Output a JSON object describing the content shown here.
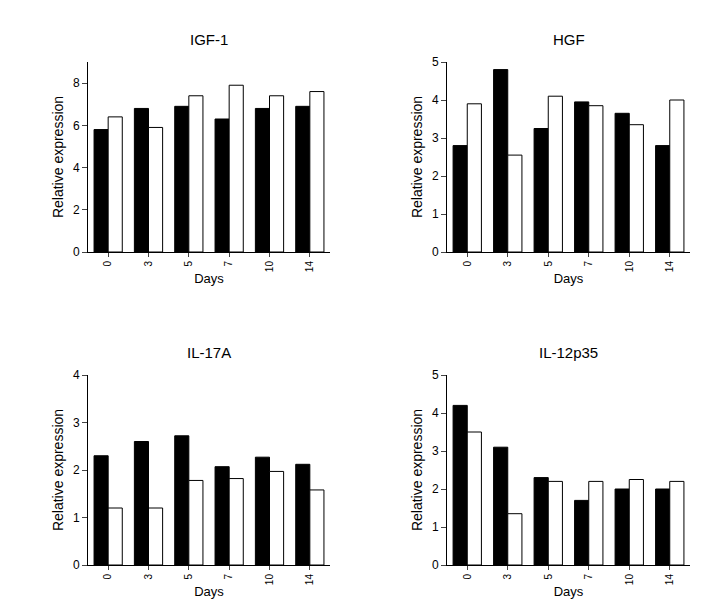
{
  "chart_data": [
    {
      "type": "bar",
      "title": "IGF-1",
      "x_label": "Days",
      "y_label": "Relative expression",
      "categories": [
        "0",
        "3",
        "5",
        "7",
        "10",
        "14"
      ],
      "series": [
        {
          "color": "#000000",
          "values": [
            5.8,
            6.8,
            6.9,
            6.3,
            6.8,
            6.9
          ]
        },
        {
          "color": "#ffffff",
          "values": [
            6.4,
            5.9,
            7.4,
            7.9,
            7.4,
            7.6
          ]
        }
      ],
      "ylim": [
        0,
        9
      ],
      "yticks": [
        0,
        2,
        4,
        6,
        8
      ],
      "grid": false
    },
    {
      "type": "bar",
      "title": "HGF",
      "x_label": "Days",
      "y_label": "Relative expression",
      "categories": [
        "0",
        "3",
        "5",
        "7",
        "10",
        "14"
      ],
      "series": [
        {
          "color": "#000000",
          "values": [
            2.8,
            4.8,
            3.25,
            3.95,
            3.65,
            2.8
          ]
        },
        {
          "color": "#ffffff",
          "values": [
            3.9,
            2.55,
            4.1,
            3.85,
            3.35,
            4.0
          ]
        }
      ],
      "ylim": [
        0,
        5
      ],
      "yticks": [
        0,
        1,
        2,
        3,
        4,
        5
      ],
      "grid": false
    },
    {
      "type": "bar",
      "title": "IL-17A",
      "x_label": "Days",
      "y_label": "Relative expression",
      "categories": [
        "0",
        "3",
        "5",
        "7",
        "10",
        "14"
      ],
      "series": [
        {
          "color": "#000000",
          "values": [
            2.3,
            2.6,
            2.72,
            2.07,
            2.27,
            2.12
          ]
        },
        {
          "color": "#ffffff",
          "values": [
            1.2,
            1.2,
            1.78,
            1.82,
            1.97,
            1.58
          ]
        }
      ],
      "ylim": [
        0,
        4
      ],
      "yticks": [
        0,
        1,
        2,
        3,
        4
      ],
      "grid": false
    },
    {
      "type": "bar",
      "title": "IL-12p35",
      "x_label": "Days",
      "y_label": "Relative expression",
      "categories": [
        "0",
        "3",
        "5",
        "7",
        "10",
        "14"
      ],
      "series": [
        {
          "color": "#000000",
          "values": [
            4.2,
            3.1,
            2.3,
            1.7,
            2.0,
            2.0
          ]
        },
        {
          "color": "#ffffff",
          "values": [
            3.5,
            1.35,
            2.2,
            2.2,
            2.25,
            2.2
          ]
        }
      ],
      "ylim": [
        0,
        5
      ],
      "yticks": [
        0,
        1,
        2,
        3,
        4,
        5
      ],
      "grid": false
    }
  ]
}
